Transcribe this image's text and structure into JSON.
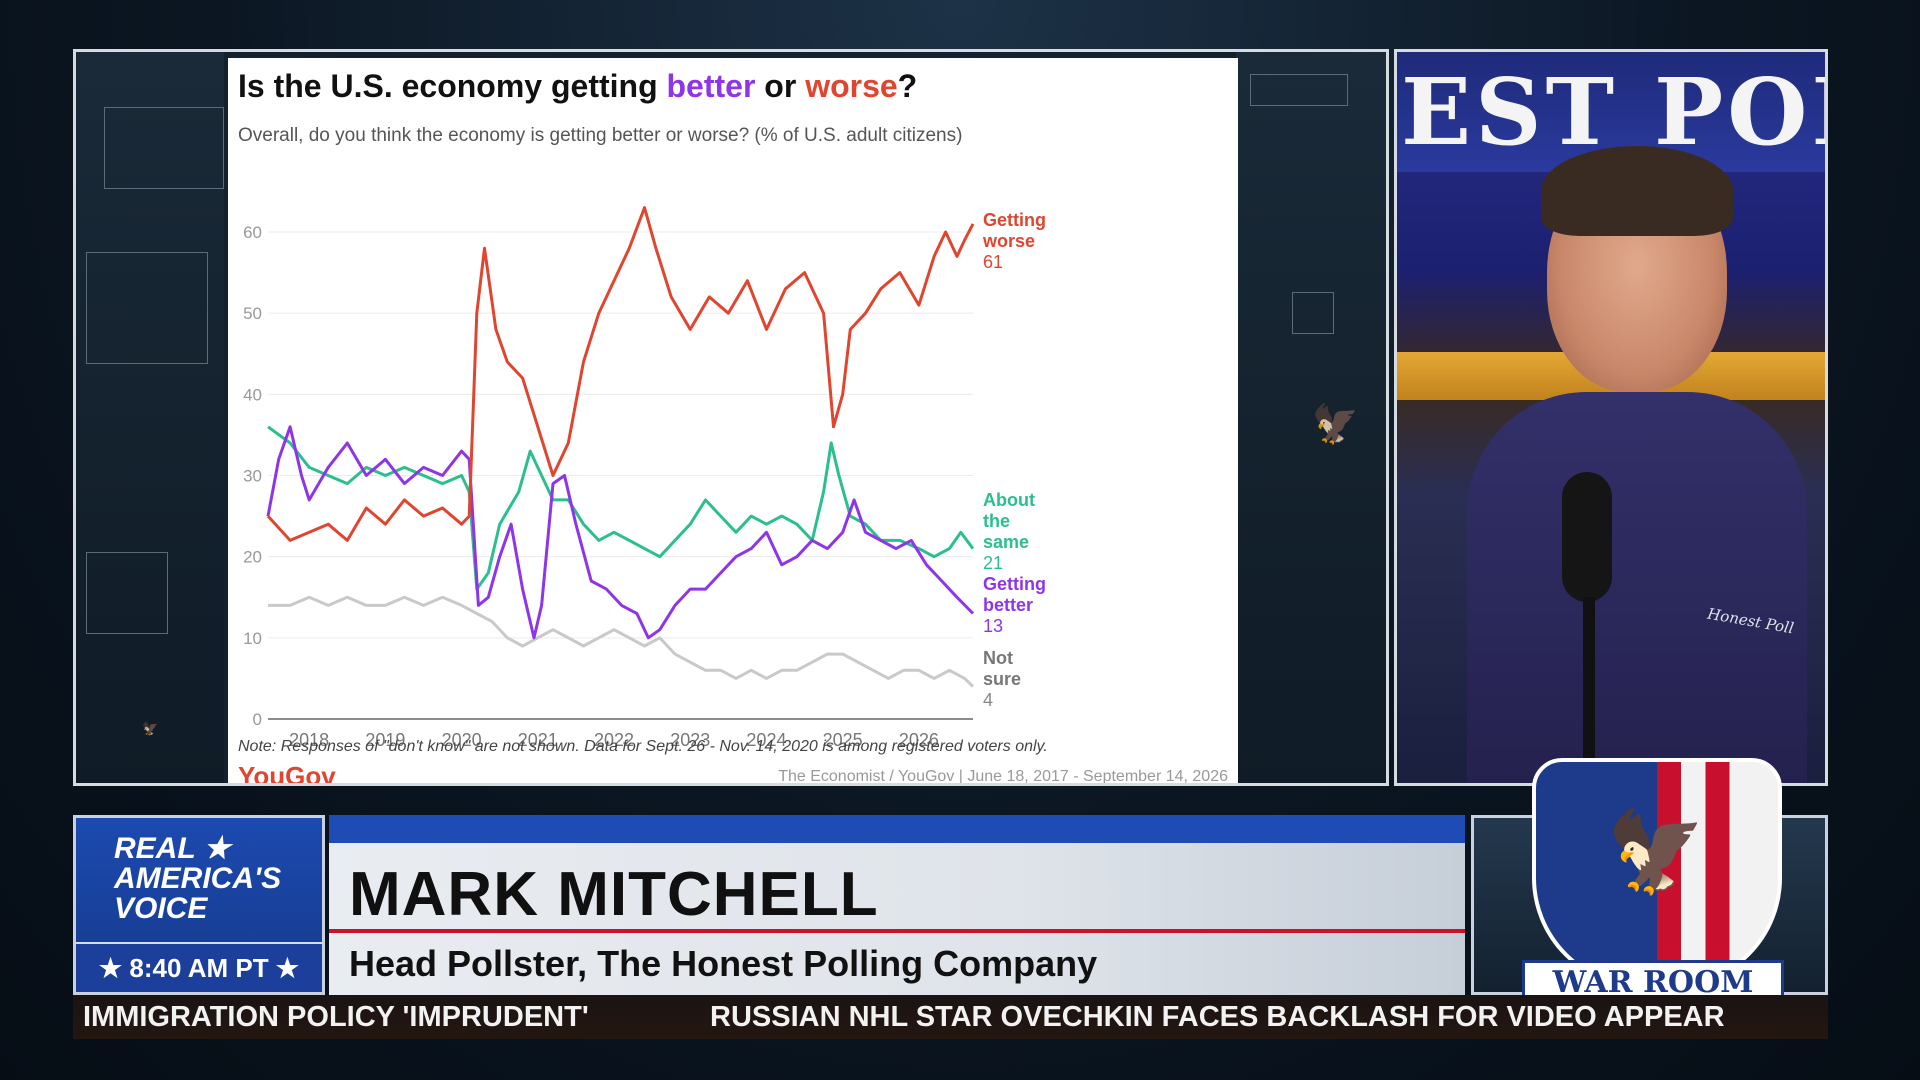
{
  "chart_card": {
    "title_prefix": "Is the U.S. economy getting ",
    "title_better": "better",
    "title_or": " or ",
    "title_worse": "worse",
    "title_suffix": "?",
    "subtitle": "Overall, do you think the economy is getting better or worse? (% of U.S. adult citizens)",
    "note": "Note: Responses of \"don't know\" are not shown. Data for Sept. 26 - Nov. 14, 2020 is among registered voters only.",
    "logo": "YouGov",
    "source": "The Economist / YouGov | June 18, 2017 - September 14, 2026"
  },
  "chart_data": {
    "type": "line",
    "title": "Is the U.S. economy getting better or worse?",
    "subtitle": "Overall, do you think the economy is getting better or worse? (% of U.S. adult citizens)",
    "xlabel": "",
    "ylabel": "",
    "x_ticks": [
      "2018",
      "2019",
      "2020",
      "2021",
      "2022",
      "2023",
      "2024",
      "2025",
      "2026"
    ],
    "y_ticks": [
      0,
      10,
      20,
      30,
      40,
      50,
      60
    ],
    "xlim": [
      2017.46,
      2026.71
    ],
    "ylim": [
      0,
      66
    ],
    "grid": true,
    "legend": "direct labels at right end of lines",
    "series": [
      {
        "name": "Getting worse",
        "end_label": "61",
        "color": "#e0452f",
        "points": [
          [
            2017.46,
            25
          ],
          [
            2017.75,
            22
          ],
          [
            2018.0,
            23
          ],
          [
            2018.25,
            24
          ],
          [
            2018.5,
            22
          ],
          [
            2018.75,
            26
          ],
          [
            2019.0,
            24
          ],
          [
            2019.25,
            27
          ],
          [
            2019.5,
            25
          ],
          [
            2019.75,
            26
          ],
          [
            2020.0,
            24
          ],
          [
            2020.1,
            25
          ],
          [
            2020.2,
            50
          ],
          [
            2020.3,
            58
          ],
          [
            2020.45,
            48
          ],
          [
            2020.6,
            44
          ],
          [
            2020.8,
            42
          ],
          [
            2021.0,
            36
          ],
          [
            2021.2,
            30
          ],
          [
            2021.4,
            34
          ],
          [
            2021.6,
            44
          ],
          [
            2021.8,
            50
          ],
          [
            2022.0,
            54
          ],
          [
            2022.2,
            58
          ],
          [
            2022.4,
            63
          ],
          [
            2022.55,
            58
          ],
          [
            2022.75,
            52
          ],
          [
            2023.0,
            48
          ],
          [
            2023.25,
            52
          ],
          [
            2023.5,
            50
          ],
          [
            2023.75,
            54
          ],
          [
            2024.0,
            48
          ],
          [
            2024.25,
            53
          ],
          [
            2024.5,
            55
          ],
          [
            2024.75,
            50
          ],
          [
            2024.88,
            36
          ],
          [
            2025.0,
            40
          ],
          [
            2025.1,
            48
          ],
          [
            2025.3,
            50
          ],
          [
            2025.5,
            53
          ],
          [
            2025.75,
            55
          ],
          [
            2026.0,
            51
          ],
          [
            2026.2,
            57
          ],
          [
            2026.35,
            60
          ],
          [
            2026.5,
            57
          ],
          [
            2026.6,
            59
          ],
          [
            2026.71,
            61
          ]
        ]
      },
      {
        "name": "About the same",
        "end_label": "21",
        "color": "#2bbf8f",
        "points": [
          [
            2017.46,
            36
          ],
          [
            2017.75,
            34
          ],
          [
            2018.0,
            31
          ],
          [
            2018.25,
            30
          ],
          [
            2018.5,
            29
          ],
          [
            2018.75,
            31
          ],
          [
            2019.0,
            30
          ],
          [
            2019.25,
            31
          ],
          [
            2019.5,
            30
          ],
          [
            2019.75,
            29
          ],
          [
            2020.0,
            30
          ],
          [
            2020.1,
            28
          ],
          [
            2020.2,
            16
          ],
          [
            2020.35,
            18
          ],
          [
            2020.5,
            24
          ],
          [
            2020.75,
            28
          ],
          [
            2020.9,
            33
          ],
          [
            2021.0,
            31
          ],
          [
            2021.2,
            27
          ],
          [
            2021.4,
            27
          ],
          [
            2021.6,
            24
          ],
          [
            2021.8,
            22
          ],
          [
            2022.0,
            23
          ],
          [
            2022.2,
            22
          ],
          [
            2022.4,
            21
          ],
          [
            2022.6,
            20
          ],
          [
            2022.8,
            22
          ],
          [
            2023.0,
            24
          ],
          [
            2023.2,
            27
          ],
          [
            2023.4,
            25
          ],
          [
            2023.6,
            23
          ],
          [
            2023.8,
            25
          ],
          [
            2024.0,
            24
          ],
          [
            2024.2,
            25
          ],
          [
            2024.4,
            24
          ],
          [
            2024.6,
            22
          ],
          [
            2024.75,
            28
          ],
          [
            2024.85,
            34
          ],
          [
            2024.95,
            30
          ],
          [
            2025.1,
            25
          ],
          [
            2025.3,
            24
          ],
          [
            2025.5,
            22
          ],
          [
            2025.75,
            22
          ],
          [
            2026.0,
            21
          ],
          [
            2026.2,
            20
          ],
          [
            2026.4,
            21
          ],
          [
            2026.55,
            23
          ],
          [
            2026.71,
            21
          ]
        ]
      },
      {
        "name": "Getting better",
        "end_label": "13",
        "color": "#8f35e8",
        "points": [
          [
            2017.46,
            25
          ],
          [
            2017.6,
            32
          ],
          [
            2017.75,
            36
          ],
          [
            2017.9,
            30
          ],
          [
            2018.0,
            27
          ],
          [
            2018.25,
            31
          ],
          [
            2018.5,
            34
          ],
          [
            2018.75,
            30
          ],
          [
            2019.0,
            32
          ],
          [
            2019.25,
            29
          ],
          [
            2019.5,
            31
          ],
          [
            2019.75,
            30
          ],
          [
            2020.0,
            33
          ],
          [
            2020.1,
            32
          ],
          [
            2020.22,
            14
          ],
          [
            2020.35,
            15
          ],
          [
            2020.5,
            20
          ],
          [
            2020.65,
            24
          ],
          [
            2020.8,
            16
          ],
          [
            2020.95,
            10
          ],
          [
            2021.05,
            14
          ],
          [
            2021.2,
            29
          ],
          [
            2021.35,
            30
          ],
          [
            2021.5,
            24
          ],
          [
            2021.7,
            17
          ],
          [
            2021.9,
            16
          ],
          [
            2022.1,
            14
          ],
          [
            2022.3,
            13
          ],
          [
            2022.45,
            10
          ],
          [
            2022.6,
            11
          ],
          [
            2022.8,
            14
          ],
          [
            2023.0,
            16
          ],
          [
            2023.2,
            16
          ],
          [
            2023.4,
            18
          ],
          [
            2023.6,
            20
          ],
          [
            2023.8,
            21
          ],
          [
            2024.0,
            23
          ],
          [
            2024.2,
            19
          ],
          [
            2024.4,
            20
          ],
          [
            2024.6,
            22
          ],
          [
            2024.8,
            21
          ],
          [
            2025.0,
            23
          ],
          [
            2025.15,
            27
          ],
          [
            2025.3,
            23
          ],
          [
            2025.5,
            22
          ],
          [
            2025.7,
            21
          ],
          [
            2025.9,
            22
          ],
          [
            2026.1,
            19
          ],
          [
            2026.3,
            17
          ],
          [
            2026.5,
            15
          ],
          [
            2026.71,
            13
          ]
        ]
      },
      {
        "name": "Not sure",
        "end_label": "4",
        "color": "#c9c9c9",
        "points": [
          [
            2017.46,
            14
          ],
          [
            2017.75,
            14
          ],
          [
            2018.0,
            15
          ],
          [
            2018.25,
            14
          ],
          [
            2018.5,
            15
          ],
          [
            2018.75,
            14
          ],
          [
            2019.0,
            14
          ],
          [
            2019.25,
            15
          ],
          [
            2019.5,
            14
          ],
          [
            2019.75,
            15
          ],
          [
            2020.0,
            14
          ],
          [
            2020.2,
            13
          ],
          [
            2020.4,
            12
          ],
          [
            2020.6,
            10
          ],
          [
            2020.8,
            9
          ],
          [
            2021.0,
            10
          ],
          [
            2021.2,
            11
          ],
          [
            2021.4,
            10
          ],
          [
            2021.6,
            9
          ],
          [
            2021.8,
            10
          ],
          [
            2022.0,
            11
          ],
          [
            2022.2,
            10
          ],
          [
            2022.4,
            9
          ],
          [
            2022.6,
            10
          ],
          [
            2022.8,
            8
          ],
          [
            2023.0,
            7
          ],
          [
            2023.2,
            6
          ],
          [
            2023.4,
            6
          ],
          [
            2023.6,
            5
          ],
          [
            2023.8,
            6
          ],
          [
            2024.0,
            5
          ],
          [
            2024.2,
            6
          ],
          [
            2024.4,
            6
          ],
          [
            2024.6,
            7
          ],
          [
            2024.8,
            8
          ],
          [
            2025.0,
            8
          ],
          [
            2025.2,
            7
          ],
          [
            2025.4,
            6
          ],
          [
            2025.6,
            5
          ],
          [
            2025.8,
            6
          ],
          [
            2026.0,
            6
          ],
          [
            2026.2,
            5
          ],
          [
            2026.4,
            6
          ],
          [
            2026.6,
            5
          ],
          [
            2026.71,
            4
          ]
        ]
      }
    ]
  },
  "studio": {
    "sign_text": "EST POL",
    "shirt_logo": "Honest Poll"
  },
  "lower_third": {
    "network_logo": "REAL ★ \nAMERICA'S\nVOICE",
    "time": "★ 8:40 AM PT ★",
    "name": "MARK MITCHELL",
    "title": "Head Pollster, The Honest Polling Company",
    "show_logo": "WAR ROOM"
  },
  "ticker": {
    "items": [
      "IMMIGRATION POLICY 'IMPRUDENT'",
      "RUSSIAN NHL STAR OVECHKIN FACES BACKLASH FOR VIDEO APPEAR"
    ]
  },
  "colors": {
    "better": "#8f35e8",
    "worse": "#e0452f",
    "same": "#2bbf8f",
    "not_sure": "#c9c9c9",
    "network_blue": "#1e4bb4",
    "accent_red": "#c7142a"
  },
  "icons": {
    "star": "star-icon",
    "eagle": "eagle-icon"
  }
}
